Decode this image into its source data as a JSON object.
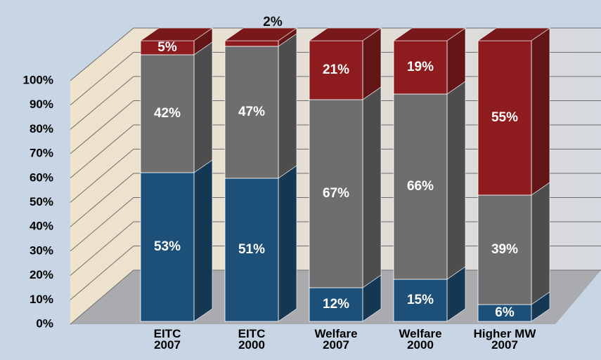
{
  "chart_data": {
    "type": "bar3d_stacked",
    "categories": [
      "EITC\n2007",
      "EITC\n2000",
      "Welfare\n2007",
      "Welfare\n2000",
      "Higher MW\n2007"
    ],
    "series": [
      {
        "color": "#1d5078",
        "values": [
          53,
          51,
          12,
          15,
          6
        ],
        "value_labels": [
          "53%",
          "51%",
          "12%",
          "15%",
          "6%"
        ]
      },
      {
        "color": "#6e6e70",
        "values": [
          42,
          47,
          67,
          66,
          39
        ],
        "value_labels": [
          "42%",
          "47%",
          "67%",
          "66%",
          "39%"
        ]
      },
      {
        "color": "#8e1c1e",
        "values": [
          5,
          2,
          21,
          19,
          55
        ],
        "value_labels": [
          "5%",
          "2%",
          "21%",
          "19%",
          "55%"
        ]
      }
    ],
    "ylim": [
      0,
      100
    ],
    "yticks": [
      {
        "value": 0,
        "label": "0%"
      },
      {
        "value": 10,
        "label": "10%"
      },
      {
        "value": 20,
        "label": "20%"
      },
      {
        "value": 30,
        "label": "30%"
      },
      {
        "value": 40,
        "label": "40%"
      },
      {
        "value": 50,
        "label": "50%"
      },
      {
        "value": 60,
        "label": "60%"
      },
      {
        "value": 70,
        "label": "70%"
      },
      {
        "value": 80,
        "label": "80%"
      },
      {
        "value": 90,
        "label": "90%"
      },
      {
        "value": 100,
        "label": "100%"
      }
    ],
    "grid": true
  }
}
